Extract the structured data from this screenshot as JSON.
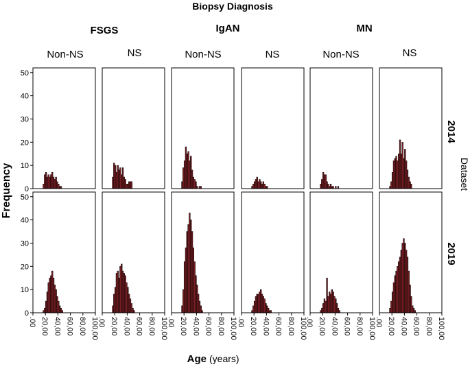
{
  "chart_data": {
    "type": "bar",
    "title": "Biopsy Diagnosis",
    "xlabel": "Age",
    "xlabel_unit": "(years)",
    "ylabel": "Frequency",
    "row_group_label": "Dataset",
    "diagnoses": [
      "FSGS",
      "IgAN",
      "MN"
    ],
    "column_labels": [
      "Non-NS",
      "NS",
      "Non-NS",
      "NS",
      "Non-NS",
      "NS"
    ],
    "row_labels": [
      "2014",
      "2019"
    ],
    "ylim": [
      0,
      52
    ],
    "y_ticks": [
      "0",
      "10",
      "20",
      "30",
      "40",
      "50"
    ],
    "xlim": [
      0,
      100
    ],
    "x_ticks": [
      ".00",
      "20,00",
      "40,00",
      "60,00",
      "80,00",
      "100,00"
    ],
    "x_tick_values": [
      0,
      20,
      40,
      60,
      80,
      100
    ],
    "bin_start": 16,
    "bin_width": 2,
    "panels": [
      {
        "dataset": "2014",
        "diagnosis": "FSGS",
        "group": "Non-NS",
        "counts": [
          2,
          6,
          7,
          5,
          6,
          5,
          6,
          7,
          5,
          4,
          5,
          3,
          2,
          1,
          1
        ]
      },
      {
        "dataset": "2014",
        "diagnosis": "FSGS",
        "group": "NS",
        "counts": [
          5,
          11,
          10,
          7,
          10,
          8,
          9,
          6,
          9,
          5,
          4,
          2,
          2,
          3,
          3,
          3
        ]
      },
      {
        "dataset": "2014",
        "diagnosis": "IgAN",
        "group": "Non-NS",
        "counts": [
          3,
          9,
          12,
          18,
          15,
          16,
          12,
          14,
          8,
          5,
          4,
          3,
          1,
          0,
          1,
          1
        ]
      },
      {
        "dataset": "2014",
        "diagnosis": "IgAN",
        "group": "NS",
        "counts": [
          1,
          2,
          3,
          4,
          5,
          3,
          4,
          3,
          2,
          3,
          2,
          1,
          1
        ]
      },
      {
        "dataset": "2014",
        "diagnosis": "MN",
        "group": "Non-NS",
        "counts": [
          2,
          4,
          7,
          6,
          6,
          3,
          2,
          1,
          2,
          1,
          1,
          0,
          1,
          0,
          1
        ]
      },
      {
        "dataset": "2014",
        "diagnosis": "MN",
        "group": "NS",
        "counts": [
          1,
          3,
          7,
          12,
          13,
          14,
          12,
          15,
          21,
          15,
          20,
          13,
          17,
          12,
          8,
          5,
          3,
          2
        ]
      },
      {
        "dataset": "2019",
        "diagnosis": "FSGS",
        "group": "Non-NS",
        "counts": [
          1,
          2,
          5,
          9,
          13,
          15,
          16,
          18,
          15,
          12,
          10,
          7,
          5,
          3,
          2,
          1
        ]
      },
      {
        "dataset": "2019",
        "diagnosis": "FSGS",
        "group": "NS",
        "counts": [
          3,
          8,
          11,
          17,
          18,
          15,
          20,
          21,
          18,
          17,
          16,
          13,
          11,
          8,
          6,
          4,
          2,
          1
        ]
      },
      {
        "dataset": "2019",
        "diagnosis": "IgAN",
        "group": "Non-NS",
        "counts": [
          3,
          10,
          22,
          28,
          35,
          38,
          43,
          40,
          35,
          28,
          22,
          16,
          12,
          8,
          5,
          3,
          1
        ]
      },
      {
        "dataset": "2019",
        "diagnosis": "IgAN",
        "group": "NS",
        "counts": [
          1,
          3,
          5,
          7,
          8,
          8,
          9,
          10,
          8,
          7,
          6,
          4,
          3,
          2,
          1,
          1
        ]
      },
      {
        "dataset": "2019",
        "diagnosis": "MN",
        "group": "Non-NS",
        "counts": [
          1,
          2,
          4,
          6,
          5,
          15,
          7,
          9,
          8,
          10,
          9,
          7,
          6,
          4,
          2,
          1
        ]
      },
      {
        "dataset": "2019",
        "diagnosis": "MN",
        "group": "NS",
        "counts": [
          2,
          5,
          9,
          13,
          16,
          18,
          20,
          22,
          24,
          27,
          30,
          32,
          30,
          27,
          24,
          18,
          12,
          7,
          3,
          2,
          1
        ]
      }
    ],
    "colors": {
      "bar_fill": "#7a1f24",
      "bar_edge": "#000000",
      "frame": "#000000",
      "background": "#ffffff"
    }
  }
}
